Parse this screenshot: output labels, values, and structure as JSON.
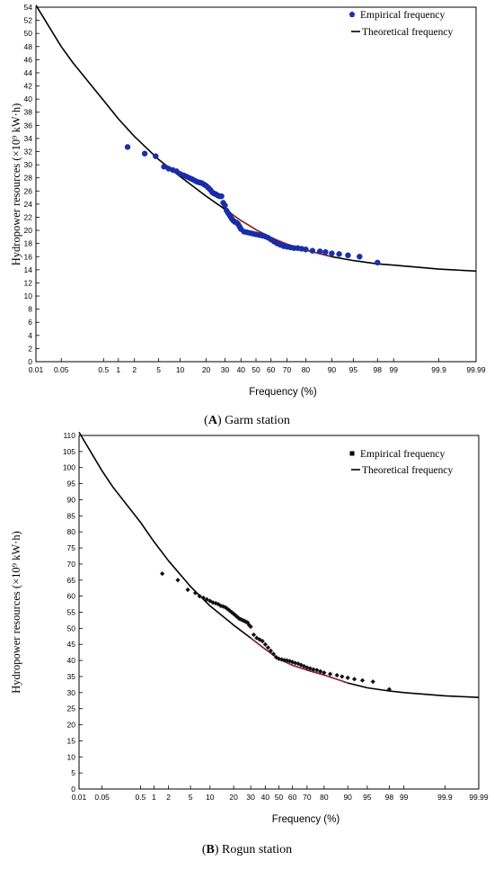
{
  "chart_data": [
    {
      "type": "scatter",
      "caption_letter": "A",
      "caption_text": "Garm station",
      "xlabel": "Frequency (%)",
      "ylabel": "Hydropower resources (×10⁹ kW·h)",
      "x_scale": "probability",
      "xlim": [
        0.01,
        99.99
      ],
      "ylim": [
        0,
        54
      ],
      "x_ticks": [
        "0.01",
        "0.05",
        "0.5",
        "1",
        "2",
        "5",
        "10",
        "20",
        "30",
        "40",
        "50",
        "60",
        "70",
        "80",
        "90",
        "95",
        "98",
        "99",
        "99.9",
        "99.99"
      ],
      "y_ticks": [
        0,
        2,
        4,
        6,
        8,
        10,
        12,
        14,
        16,
        18,
        20,
        22,
        24,
        26,
        28,
        30,
        32,
        34,
        36,
        38,
        40,
        42,
        44,
        46,
        48,
        50,
        52,
        54
      ],
      "legend_position": "top-right",
      "legend": [
        "Empirical frequency",
        "Theoretical frequency"
      ],
      "colors": {
        "empirical": "#1a2fb0",
        "theoretical": "#000000",
        "fit_segment": "#cc2233"
      },
      "series": [
        {
          "name": "Theoretical frequency",
          "x": [
            0.01,
            0.05,
            0.1,
            0.5,
            1,
            2,
            5,
            10,
            20,
            30,
            40,
            50,
            60,
            70,
            80,
            90,
            95,
            98,
            99,
            99.9,
            99.99
          ],
          "y": [
            54.3,
            48.0,
            45.5,
            39.8,
            37.0,
            34.3,
            30.8,
            28.2,
            25.2,
            23.2,
            21.5,
            20.1,
            18.9,
            17.9,
            17.0,
            16.0,
            15.4,
            14.9,
            14.7,
            14.1,
            13.8
          ]
        },
        {
          "name": "Empirical frequency",
          "x": [
            1.5,
            3,
            4.5,
            6,
            7,
            8,
            9,
            10,
            11,
            12,
            13,
            14,
            15,
            16,
            17,
            18,
            19,
            20,
            21,
            22,
            23,
            24,
            25,
            26,
            27,
            28,
            29,
            30,
            31,
            32,
            33,
            34,
            35,
            36,
            37,
            38,
            39,
            40,
            42,
            44,
            46,
            48,
            50,
            52,
            54,
            56,
            58,
            60,
            62,
            64,
            66,
            68,
            70,
            72,
            74,
            76,
            78,
            80,
            83,
            86,
            88,
            90,
            92,
            94,
            96,
            98
          ],
          "y": [
            32.7,
            31.7,
            31.3,
            29.7,
            29.4,
            29.2,
            29.0,
            28.6,
            28.4,
            28.2,
            28.0,
            27.8,
            27.6,
            27.4,
            27.3,
            27.2,
            27.0,
            26.8,
            26.5,
            26.2,
            25.8,
            25.6,
            25.5,
            25.3,
            25.2,
            25.2,
            24.2,
            23.8,
            23.0,
            22.6,
            22.2,
            21.8,
            21.5,
            21.3,
            21.2,
            21.0,
            20.6,
            20.2,
            19.8,
            19.7,
            19.6,
            19.5,
            19.4,
            19.3,
            19.2,
            19.1,
            18.9,
            18.6,
            18.3,
            18.0,
            17.8,
            17.6,
            17.5,
            17.4,
            17.3,
            17.3,
            17.2,
            17.1,
            16.9,
            16.8,
            16.7,
            16.5,
            16.4,
            16.2,
            16.0,
            15.1
          ]
        }
      ]
    },
    {
      "type": "scatter",
      "caption_letter": "B",
      "caption_text": "Rogun station",
      "xlabel": "Frequency (%)",
      "ylabel": "Hydropower resources (×10⁹ kW·h)",
      "x_scale": "probability",
      "xlim": [
        0.01,
        99.99
      ],
      "ylim": [
        0,
        110
      ],
      "x_ticks": [
        "0.01",
        "0.05",
        "0.5",
        "1",
        "2",
        "5",
        "10",
        "20",
        "30",
        "40",
        "50",
        "60",
        "70",
        "80",
        "90",
        "95",
        "98",
        "99",
        "99.9",
        "99.99"
      ],
      "y_ticks": [
        0,
        5,
        10,
        15,
        20,
        25,
        30,
        35,
        40,
        45,
        50,
        55,
        60,
        65,
        70,
        75,
        80,
        85,
        90,
        95,
        100,
        105,
        110
      ],
      "legend_position": "top-right",
      "legend": [
        "Empirical frequency",
        "Theoretical frequency"
      ],
      "colors": {
        "empirical": "#111111",
        "theoretical": "#000000",
        "fit_segment": "#cc2233"
      },
      "series": [
        {
          "name": "Theoretical frequency",
          "x": [
            0.01,
            0.05,
            0.1,
            0.5,
            1,
            2,
            5,
            10,
            20,
            30,
            40,
            50,
            60,
            70,
            80,
            90,
            95,
            98,
            99,
            99.9,
            99.99
          ],
          "y": [
            111,
            99,
            94,
            83,
            77,
            71,
            63,
            57,
            51,
            47,
            43.5,
            40.5,
            38.5,
            37,
            35.5,
            33,
            31.5,
            30.5,
            30,
            29,
            28.5
          ]
        },
        {
          "name": "Empirical frequency",
          "x": [
            1.5,
            3,
            4.5,
            6,
            7,
            8,
            9,
            10,
            11,
            12,
            13,
            14,
            15,
            16,
            17,
            18,
            19,
            20,
            21,
            22,
            23,
            24,
            25,
            26,
            27,
            28,
            29,
            30,
            32,
            34,
            36,
            38,
            40,
            42,
            44,
            46,
            48,
            50,
            52,
            54,
            56,
            58,
            60,
            62,
            64,
            66,
            68,
            70,
            72,
            74,
            76,
            78,
            80,
            83,
            86,
            88,
            90,
            92,
            94,
            96,
            98
          ],
          "y": [
            67,
            65,
            62,
            61,
            60,
            59.5,
            59,
            58.5,
            58,
            57.8,
            57.5,
            57,
            56.8,
            56.5,
            56,
            55.5,
            55,
            54.5,
            54,
            53.5,
            53,
            52.8,
            52.5,
            52.3,
            52,
            51.8,
            51,
            50.5,
            48,
            47,
            46.5,
            46,
            45,
            44,
            43,
            42,
            41,
            40.5,
            40.3,
            40.1,
            40,
            39.8,
            39.5,
            39.2,
            39,
            38.6,
            38.2,
            37.8,
            37.5,
            37.2,
            37,
            36.6,
            36.2,
            35.8,
            35.4,
            35,
            34.6,
            34.2,
            33.8,
            33.4,
            31
          ]
        }
      ]
    }
  ]
}
